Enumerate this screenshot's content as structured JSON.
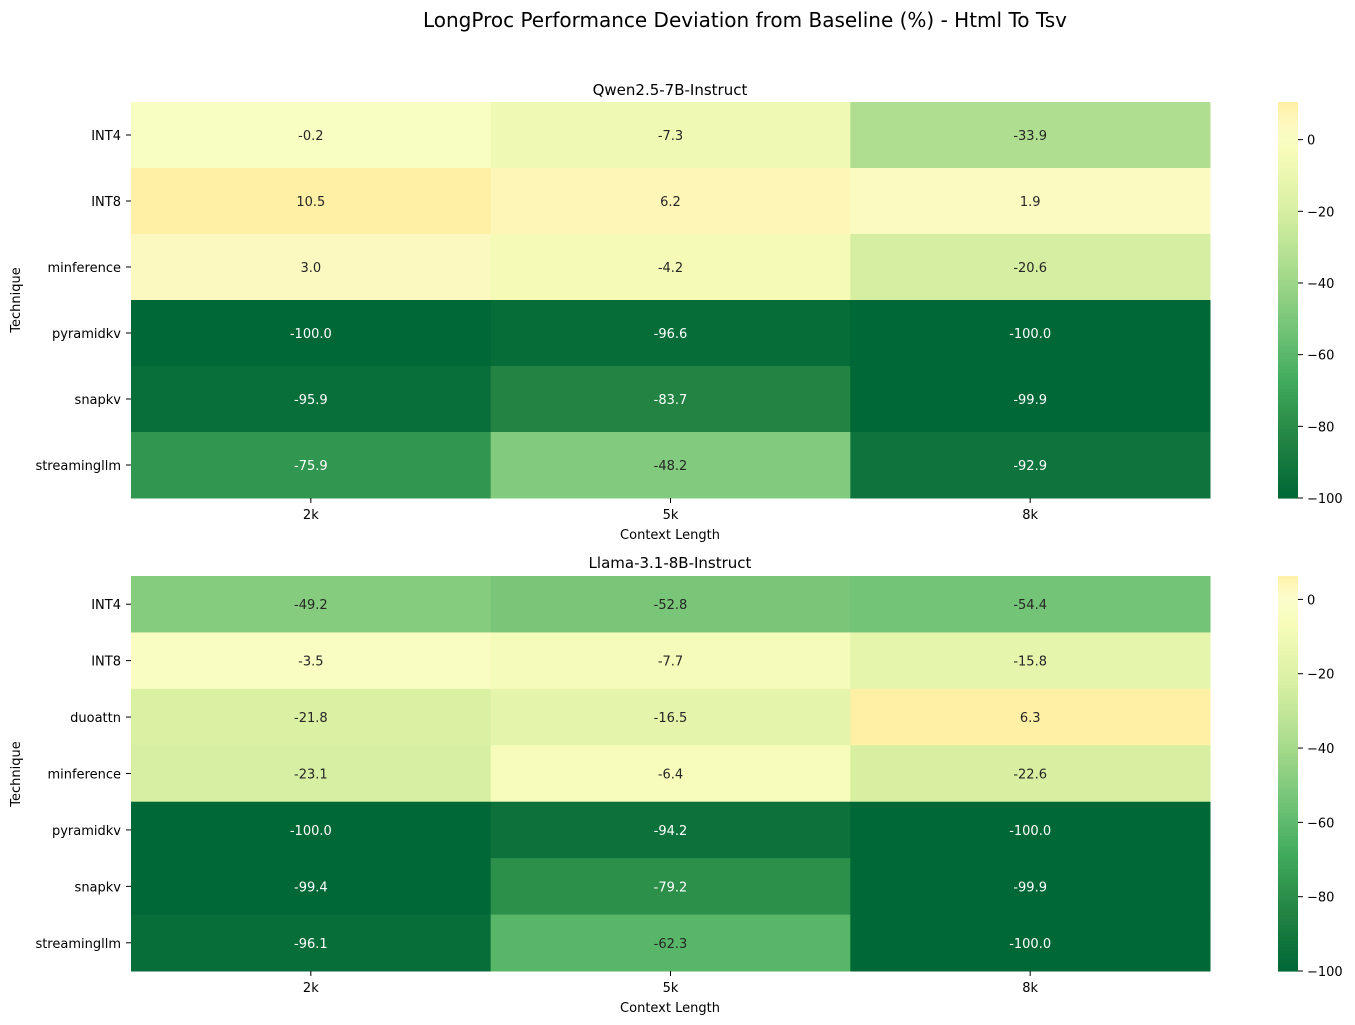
{
  "suptitle": "LongProc Performance Deviation from Baseline (%) - Html To Tsv",
  "chart_data": [
    {
      "type": "heatmap",
      "title": "Qwen2.5-7B-Instruct",
      "xlabel": "Context Length",
      "ylabel": "Technique",
      "x": [
        "2k",
        "5k",
        "8k"
      ],
      "y": [
        "INT4",
        "INT8",
        "minference",
        "pyramidkv",
        "snapkv",
        "streamingllm"
      ],
      "values": [
        [
          -0.2,
          -7.3,
          -33.9
        ],
        [
          10.5,
          6.2,
          1.9
        ],
        [
          3.0,
          -4.2,
          -20.6
        ],
        [
          -100.0,
          -96.6,
          -100.0
        ],
        [
          -95.9,
          -83.7,
          -99.9
        ],
        [
          -75.9,
          -48.2,
          -92.9
        ]
      ],
      "labels": [
        [
          "-0.2",
          "-7.3",
          "-33.9"
        ],
        [
          "10.5",
          "6.2",
          "1.9"
        ],
        [
          "3.0",
          "-4.2",
          "-20.6"
        ],
        [
          "-100.0",
          "-96.6",
          "-100.0"
        ],
        [
          "-95.9",
          "-83.7",
          "-99.9"
        ],
        [
          "-75.9",
          "-48.2",
          "-92.9"
        ]
      ],
      "vmin": -100,
      "vmax": 10.5,
      "colormap": "YlGn (reversed: high = yellow, low = dark green)",
      "colorbar_ticks": [
        0,
        -20,
        -40,
        -60,
        -80,
        -100
      ],
      "colorbar_tick_labels": [
        "0",
        "−20",
        "−40",
        "−60",
        "−80",
        "−100"
      ]
    },
    {
      "type": "heatmap",
      "title": "Llama-3.1-8B-Instruct",
      "xlabel": "Context Length",
      "ylabel": "Technique",
      "x": [
        "2k",
        "5k",
        "8k"
      ],
      "y": [
        "INT4",
        "INT8",
        "duoattn",
        "minference",
        "pyramidkv",
        "snapkv",
        "streamingllm"
      ],
      "values": [
        [
          -49.2,
          -52.8,
          -54.4
        ],
        [
          -3.5,
          -7.7,
          -15.8
        ],
        [
          -21.8,
          -16.5,
          6.3
        ],
        [
          -23.1,
          -6.4,
          -22.6
        ],
        [
          -100.0,
          -94.2,
          -100.0
        ],
        [
          -99.4,
          -79.2,
          -99.9
        ],
        [
          -96.1,
          -62.3,
          -100.0
        ]
      ],
      "labels": [
        [
          "-49.2",
          "-52.8",
          "-54.4"
        ],
        [
          "-3.5",
          "-7.7",
          "-15.8"
        ],
        [
          "-21.8",
          "-16.5",
          "6.3"
        ],
        [
          "-23.1",
          "-6.4",
          "-22.6"
        ],
        [
          "-100.0",
          "-94.2",
          "-100.0"
        ],
        [
          "-99.4",
          "-79.2",
          "-99.9"
        ],
        [
          "-96.1",
          "-62.3",
          "-100.0"
        ]
      ],
      "vmin": -100,
      "vmax": 6.3,
      "colormap": "YlGn (reversed: high = yellow, low = dark green)",
      "colorbar_ticks": [
        0,
        -20,
        -40,
        -60,
        -80,
        -100
      ],
      "colorbar_tick_labels": [
        "0",
        "−20",
        "−40",
        "−60",
        "−80",
        "−100"
      ]
    }
  ]
}
